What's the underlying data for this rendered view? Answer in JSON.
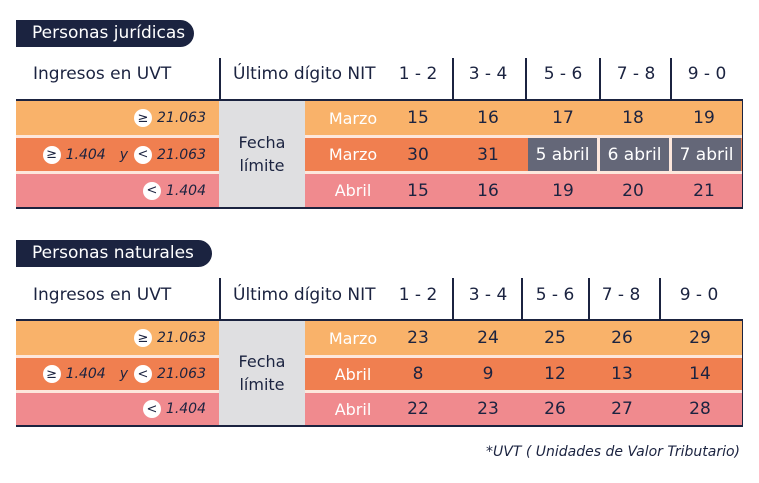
{
  "sections": [
    {
      "title": "Personas jurídicas",
      "col_ingresos": "Ingresos en UVT",
      "col_nit": "Último dígito NIT",
      "digit_groups": [
        "1 - 2",
        "3 - 4",
        "5 - 6",
        "7 - 8",
        "9 - 0"
      ],
      "fecha_line1": "Fecha",
      "fecha_line2": "límite",
      "rows": [
        {
          "sym1": "≥",
          "val1": "21.063",
          "y": "",
          "sym2": "",
          "val2": "",
          "month": "Marzo",
          "cells": [
            "15",
            "16",
            "17",
            "18",
            "19"
          ]
        },
        {
          "sym1": "≥",
          "val1": "1.404",
          "y": "y",
          "sym2": "<",
          "val2": "21.063",
          "month": "Marzo",
          "cells": [
            "30",
            "31",
            "5 abril",
            "6 abril",
            "7 abril"
          ]
        },
        {
          "sym1": "<",
          "val1": "1.404",
          "y": "",
          "sym2": "",
          "val2": "",
          "month": "Abril",
          "cells": [
            "15",
            "16",
            "19",
            "20",
            "21"
          ]
        }
      ]
    },
    {
      "title": "Personas naturales",
      "col_ingresos": "Ingresos en UVT",
      "col_nit": "Último dígito NIT",
      "digit_groups": [
        "1 - 2",
        "3 - 4",
        "5 - 6",
        "7 - 8",
        "9 - 0"
      ],
      "fecha_line1": "Fecha",
      "fecha_line2": "límite",
      "rows": [
        {
          "sym1": "≥",
          "val1": "21.063",
          "y": "",
          "sym2": "",
          "val2": "",
          "month": "Marzo",
          "cells": [
            "23",
            "24",
            "25",
            "26",
            "29"
          ]
        },
        {
          "sym1": "≥",
          "val1": "1.404",
          "y": "y",
          "sym2": "<",
          "val2": "21.063",
          "month": "Abril",
          "cells": [
            "8",
            "9",
            "12",
            "13",
            "14"
          ]
        },
        {
          "sym1": "<",
          "val1": "1.404",
          "y": "",
          "sym2": "",
          "val2": "",
          "month": "Abril",
          "cells": [
            "22",
            "23",
            "26",
            "27",
            "28"
          ]
        }
      ]
    }
  ],
  "footnote": "*UVT ( Unidades de Valor Tributario)",
  "colors": {
    "orange_light": "#f9b26a",
    "orange": "#f07f50",
    "pink": "#f08a8e",
    "gray": "#dfdfe1",
    "slate": "#646778",
    "navy": "#1b2340"
  }
}
